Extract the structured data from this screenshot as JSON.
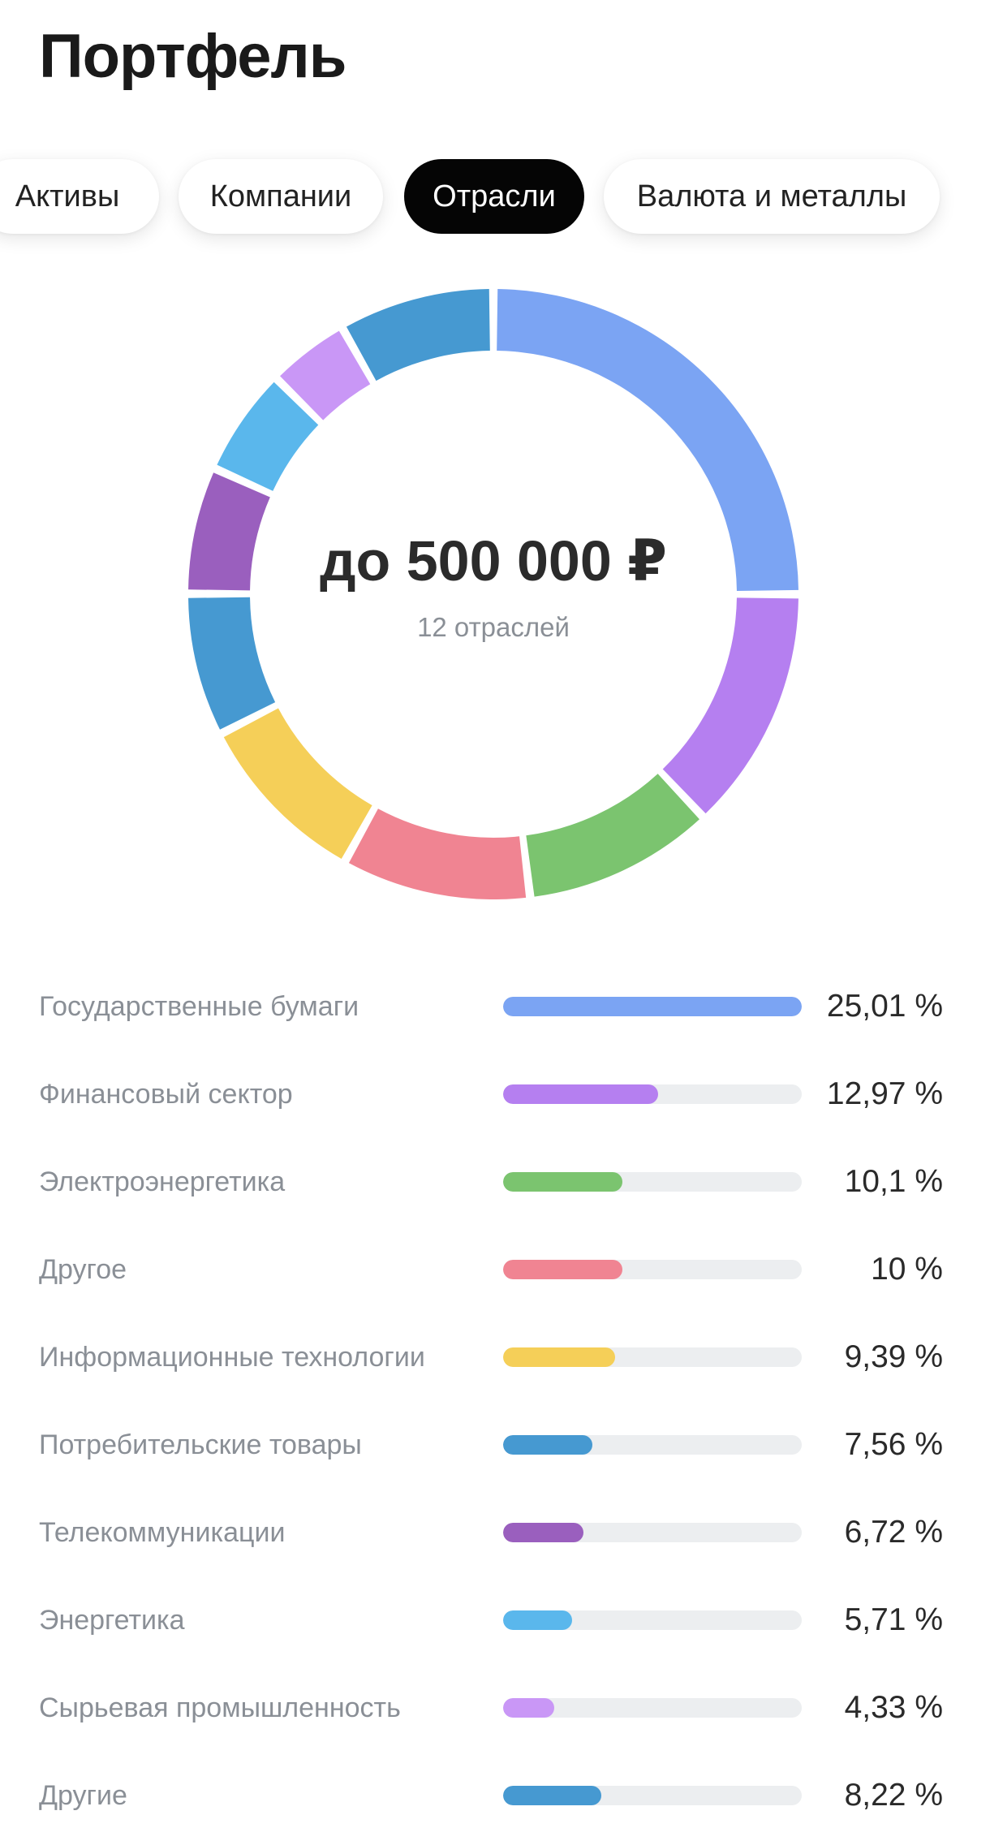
{
  "header": {
    "title": "Портфель"
  },
  "tabs": [
    {
      "label": "Активы",
      "active": false
    },
    {
      "label": "Компании",
      "active": false
    },
    {
      "label": "Отрасли",
      "active": true
    },
    {
      "label": "Валюта и металлы",
      "active": false
    }
  ],
  "summary": {
    "total": "до 500 000 ₽",
    "subtitle": "12 отраслей"
  },
  "chart_data": {
    "type": "pie",
    "variant": "donut",
    "series": [
      {
        "name": "Государственные бумаги",
        "value": 25.01,
        "color": "#7ba4f3"
      },
      {
        "name": "Финансовый сектор",
        "value": 12.97,
        "color": "#b57ff0"
      },
      {
        "name": "Электроэнергетика",
        "value": 10.1,
        "color": "#7bc46f"
      },
      {
        "name": "Другое",
        "value": 10,
        "color": "#f08492"
      },
      {
        "name": "Информационные технологии",
        "value": 9.39,
        "color": "#f5cf58"
      },
      {
        "name": "Потребительские товары",
        "value": 7.56,
        "color": "#4699d1"
      },
      {
        "name": "Телекоммуникации",
        "value": 6.72,
        "color": "#9a5fbe"
      },
      {
        "name": "Энергетика",
        "value": 5.71,
        "color": "#5ab7ec"
      },
      {
        "name": "Сырьевая промышленность",
        "value": 4.33,
        "color": "#c997f6"
      },
      {
        "name": "Другие",
        "value": 8.22,
        "color": "#4699d1"
      }
    ]
  },
  "legend": [
    {
      "label": "Государственные бумаги",
      "value_text": "25,01 %",
      "percent": 25.01,
      "bar_fraction": 1.0,
      "color": "#7ba4f3"
    },
    {
      "label": "Финансовый сектор",
      "value_text": "12,97 %",
      "percent": 12.97,
      "bar_fraction": 0.52,
      "color": "#b57ff0"
    },
    {
      "label": "Электроэнергетика",
      "value_text": "10,1 %",
      "percent": 10.1,
      "bar_fraction": 0.4,
      "color": "#7bc46f"
    },
    {
      "label": "Другое",
      "value_text": "10 %",
      "percent": 10,
      "bar_fraction": 0.4,
      "color": "#f08492"
    },
    {
      "label": "Информационные технологии",
      "value_text": "9,39 %",
      "percent": 9.39,
      "bar_fraction": 0.375,
      "color": "#f5cf58"
    },
    {
      "label": "Потребительские товары",
      "value_text": "7,56 %",
      "percent": 7.56,
      "bar_fraction": 0.3,
      "color": "#4699d1"
    },
    {
      "label": "Телекоммуникации",
      "value_text": "6,72 %",
      "percent": 6.72,
      "bar_fraction": 0.27,
      "color": "#9a5fbe"
    },
    {
      "label": "Энергетика",
      "value_text": "5,71 %",
      "percent": 5.71,
      "bar_fraction": 0.23,
      "color": "#5ab7ec"
    },
    {
      "label": "Сырьевая промышленность",
      "value_text": "4,33 %",
      "percent": 4.33,
      "bar_fraction": 0.17,
      "color": "#c997f6"
    },
    {
      "label": "Другие",
      "value_text": "8,22 %",
      "percent": 8.22,
      "bar_fraction": 0.33,
      "color": "#4699d1"
    }
  ]
}
